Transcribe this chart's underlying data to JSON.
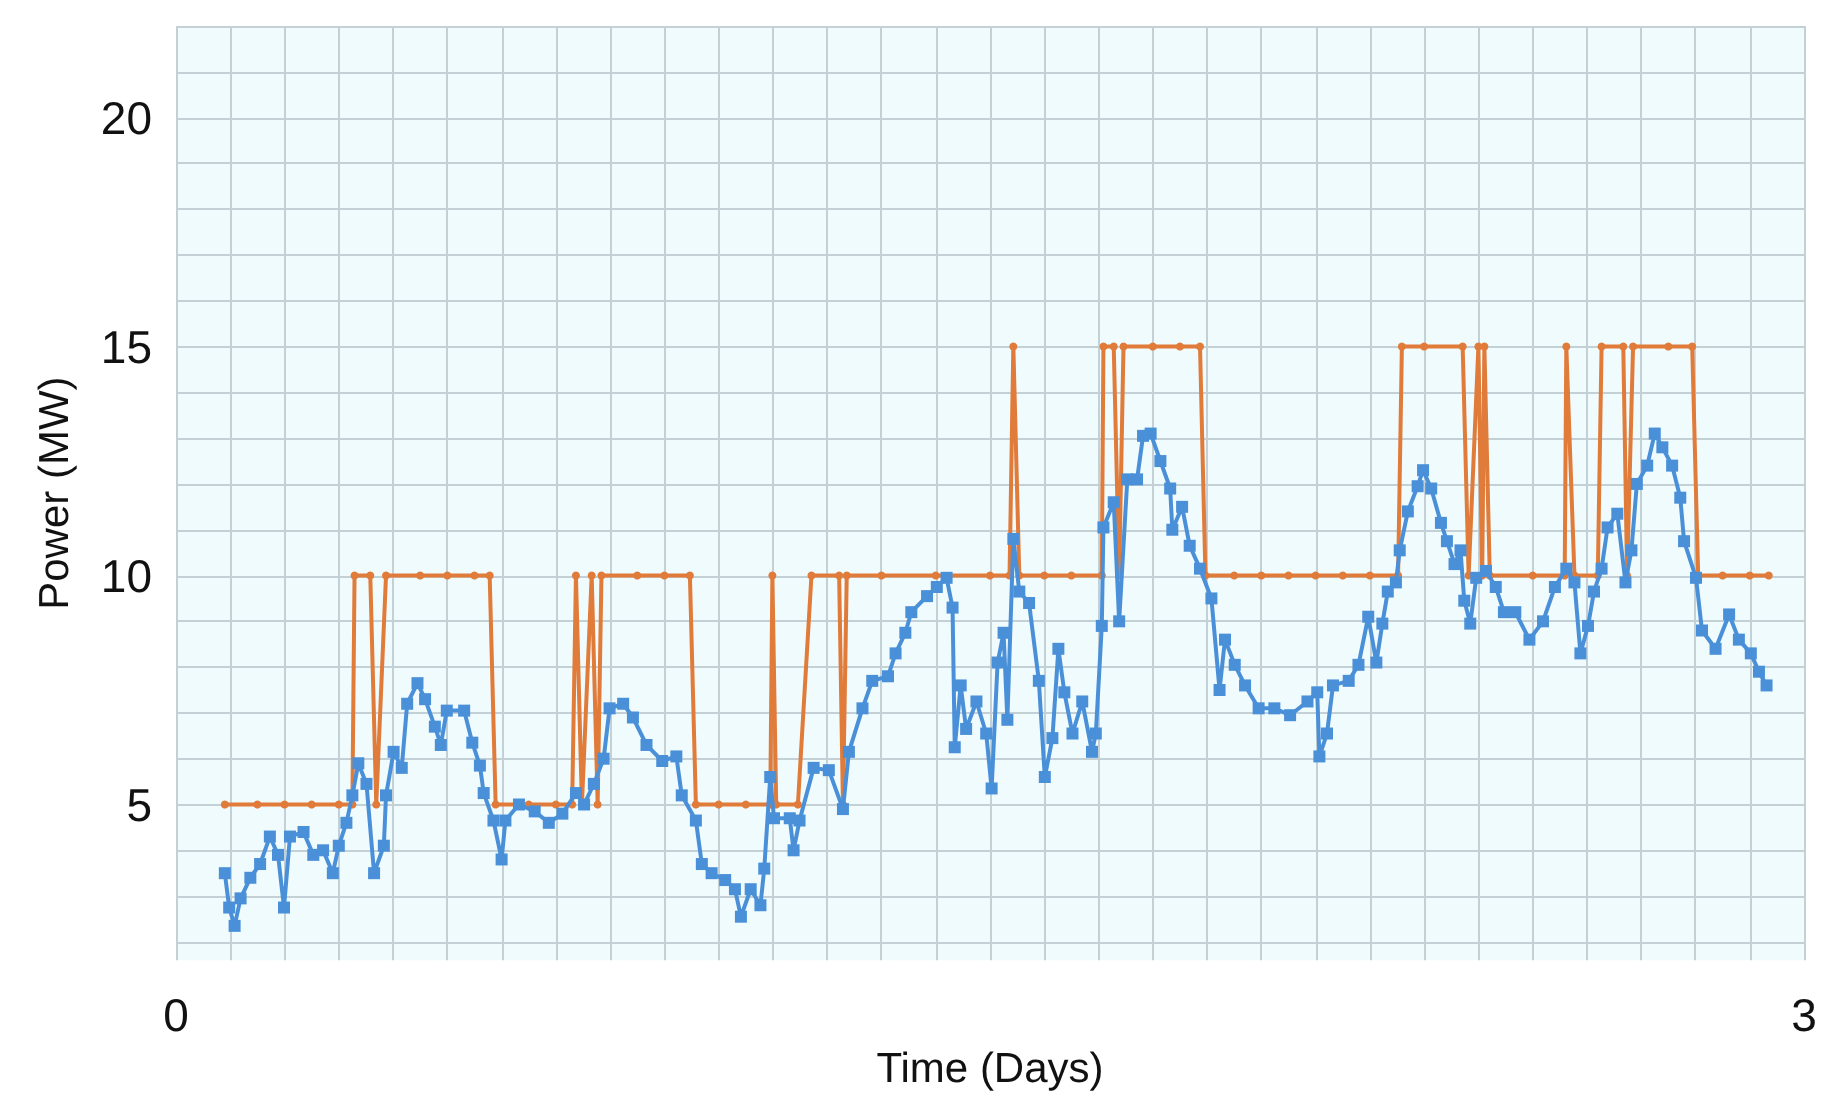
{
  "chart_data": {
    "type": "line",
    "xlabel": "Time (Days)",
    "ylabel": "Power (MW)",
    "xlim": [
      0,
      3
    ],
    "ylim": [
      1.6,
      22
    ],
    "xticks": [
      0,
      {
        "value": 0.1,
        "label": null
      },
      {
        "value": 0.2,
        "label": null
      },
      {
        "value": 0.3,
        "label": null
      },
      {
        "value": 0.4,
        "label": null
      },
      {
        "value": 0.5,
        "label": null
      },
      {
        "value": 0.6,
        "label": null
      },
      {
        "value": 0.7,
        "label": null
      },
      {
        "value": 0.8,
        "label": null
      },
      {
        "value": 0.9,
        "label": null
      },
      {
        "value": 1,
        "label": null
      },
      {
        "value": 1.1,
        "label": null
      },
      {
        "value": 1.2,
        "label": null
      },
      {
        "value": 1.3,
        "label": null
      },
      {
        "value": 1.4,
        "label": null
      },
      {
        "value": 1.5,
        "label": null
      },
      {
        "value": 1.6,
        "label": null
      },
      {
        "value": 1.7,
        "label": null
      },
      {
        "value": 1.8,
        "label": null
      },
      {
        "value": 1.9,
        "label": null
      },
      {
        "value": 2,
        "label": null
      },
      {
        "value": 2.1,
        "label": null
      },
      {
        "value": 2.2,
        "label": null
      },
      {
        "value": 2.3,
        "label": null
      },
      {
        "value": 2.4,
        "label": null
      },
      {
        "value": 2.5,
        "label": null
      },
      {
        "value": 2.6,
        "label": null
      },
      {
        "value": 2.7,
        "label": null
      },
      {
        "value": 2.8,
        "label": null
      },
      {
        "value": 2.9,
        "label": null
      },
      3
    ],
    "yticks": [
      {
        "value": 2,
        "label": null
      },
      {
        "value": 3,
        "label": null
      },
      {
        "value": 4,
        "label": null
      },
      5,
      {
        "value": 6,
        "label": null
      },
      {
        "value": 7,
        "label": null
      },
      {
        "value": 8,
        "label": null
      },
      {
        "value": 9,
        "label": null
      },
      10,
      {
        "value": 11,
        "label": null
      },
      {
        "value": 12,
        "label": null
      },
      {
        "value": 13,
        "label": null
      },
      {
        "value": 14,
        "label": null
      },
      15,
      {
        "value": 16,
        "label": null
      },
      {
        "value": 17,
        "label": null
      },
      {
        "value": 18,
        "label": null
      },
      {
        "value": 19,
        "label": null
      },
      20,
      {
        "value": 21,
        "label": null
      },
      {
        "value": 22,
        "label": null
      }
    ],
    "grid": true,
    "series": [
      {
        "color": "#e07b39",
        "marker": "circle",
        "x": [
          0.09,
          0.15,
          0.2,
          0.25,
          0.3,
          0.325,
          0.329,
          0.358,
          0.369,
          0.387,
          0.45,
          0.5,
          0.55,
          0.578,
          0.589,
          0.65,
          0.7,
          0.73,
          0.737,
          0.748,
          0.766,
          0.777,
          0.784,
          0.85,
          0.9,
          0.947,
          0.958,
          1.0,
          1.05,
          1.095,
          1.099,
          1.106,
          1.146,
          1.171,
          1.222,
          1.229,
          1.236,
          1.3,
          1.4,
          1.5,
          1.536,
          1.543,
          1.554,
          1.6,
          1.65,
          1.706,
          1.709,
          1.728,
          1.738,
          1.746,
          1.8,
          1.85,
          1.887,
          1.897,
          1.95,
          2.0,
          2.05,
          2.1,
          2.15,
          2.2,
          2.252,
          2.259,
          2.3,
          2.371,
          2.382,
          2.4,
          2.407,
          2.411,
          2.421,
          2.5,
          2.559,
          2.562,
          2.577,
          2.62,
          2.627,
          2.667,
          2.674,
          2.685,
          2.75,
          2.794,
          2.805,
          2.85,
          2.9,
          2.935
        ],
        "values": [
          5,
          5,
          5,
          5,
          5,
          5,
          10,
          10,
          5,
          10,
          10,
          10,
          10,
          10,
          5,
          5,
          5,
          5,
          10,
          5,
          10,
          5,
          10,
          10,
          10,
          10,
          5,
          5,
          5,
          5,
          10,
          5,
          5,
          10,
          10,
          5,
          10,
          10,
          10,
          10,
          10,
          15,
          10,
          10,
          10,
          10,
          15,
          15,
          10,
          15,
          15,
          15,
          15,
          10,
          10,
          10,
          10,
          10,
          10,
          10,
          10,
          15,
          15,
          15,
          10,
          15,
          10,
          15,
          10,
          10,
          10,
          15,
          10,
          10,
          15,
          15,
          10,
          15,
          15,
          15,
          10,
          10,
          10,
          10
        ]
      },
      {
        "color": "#4a90d9",
        "marker": "square",
        "x": [
          0.09,
          0.098,
          0.108,
          0.119,
          0.137,
          0.155,
          0.173,
          0.188,
          0.199,
          0.21,
          0.235,
          0.253,
          0.271,
          0.289,
          0.3,
          0.314,
          0.325,
          0.336,
          0.351,
          0.365,
          0.383,
          0.387,
          0.401,
          0.416,
          0.426,
          0.445,
          0.459,
          0.477,
          0.488,
          0.499,
          0.531,
          0.546,
          0.56,
          0.567,
          0.585,
          0.6,
          0.607,
          0.632,
          0.661,
          0.687,
          0.712,
          0.737,
          0.752,
          0.77,
          0.788,
          0.799,
          0.824,
          0.842,
          0.867,
          0.896,
          0.922,
          0.932,
          0.958,
          0.969,
          0.987,
          1.012,
          1.03,
          1.041,
          1.059,
          1.077,
          1.084,
          1.095,
          1.102,
          1.131,
          1.138,
          1.149,
          1.175,
          1.203,
          1.229,
          1.24,
          1.265,
          1.283,
          1.312,
          1.326,
          1.344,
          1.355,
          1.384,
          1.402,
          1.42,
          1.431,
          1.435,
          1.446,
          1.456,
          1.475,
          1.493,
          1.503,
          1.514,
          1.525,
          1.532,
          1.543,
          1.554,
          1.572,
          1.59,
          1.601,
          1.615,
          1.626,
          1.637,
          1.652,
          1.67,
          1.688,
          1.695,
          1.706,
          1.709,
          1.728,
          1.738,
          1.753,
          1.771,
          1.782,
          1.796,
          1.814,
          1.832,
          1.836,
          1.854,
          1.868,
          1.887,
          1.908,
          1.923,
          1.933,
          1.951,
          1.97,
          1.995,
          2.024,
          2.053,
          2.085,
          2.103,
          2.107,
          2.121,
          2.132,
          2.161,
          2.179,
          2.197,
          2.212,
          2.223,
          2.233,
          2.248,
          2.255,
          2.27,
          2.288,
          2.298,
          2.313,
          2.331,
          2.342,
          2.356,
          2.367,
          2.374,
          2.385,
          2.396,
          2.414,
          2.432,
          2.447,
          2.468,
          2.494,
          2.519,
          2.541,
          2.562,
          2.577,
          2.588,
          2.602,
          2.613,
          2.627,
          2.638,
          2.656,
          2.671,
          2.682,
          2.692,
          2.711,
          2.725,
          2.739,
          2.757,
          2.772,
          2.779,
          2.801,
          2.812,
          2.837,
          2.862,
          2.88,
          2.902,
          2.917,
          2.931
        ],
        "values": [
          3.5,
          2.75,
          2.35,
          2.95,
          3.4,
          3.7,
          4.3,
          3.9,
          2.75,
          4.3,
          4.4,
          3.9,
          4.0,
          3.5,
          4.1,
          4.6,
          5.2,
          5.9,
          5.45,
          3.5,
          4.1,
          5.2,
          6.15,
          5.8,
          7.2,
          7.65,
          7.3,
          6.7,
          6.3,
          7.05,
          7.05,
          6.35,
          5.85,
          5.25,
          4.65,
          3.8,
          4.65,
          5.0,
          4.85,
          4.6,
          4.8,
          5.25,
          5.0,
          5.45,
          6.0,
          7.1,
          7.2,
          6.9,
          6.3,
          5.95,
          6.05,
          5.2,
          4.65,
          3.7,
          3.5,
          3.35,
          3.15,
          2.55,
          3.15,
          2.8,
          3.6,
          5.6,
          4.7,
          4.7,
          4.0,
          4.65,
          5.8,
          5.75,
          4.9,
          6.15,
          7.1,
          7.7,
          7.8,
          8.3,
          8.75,
          9.2,
          9.55,
          9.75,
          9.95,
          9.3,
          6.25,
          7.6,
          6.65,
          7.25,
          6.55,
          5.35,
          8.1,
          8.75,
          6.85,
          10.8,
          9.65,
          9.4,
          7.7,
          5.6,
          6.45,
          8.4,
          7.45,
          6.55,
          7.25,
          6.15,
          6.55,
          8.9,
          11.05,
          11.6,
          9.0,
          12.1,
          12.1,
          13.05,
          13.1,
          12.5,
          11.9,
          11.0,
          11.5,
          10.65,
          10.15,
          9.5,
          7.5,
          8.6,
          8.05,
          7.6,
          7.1,
          7.1,
          6.95,
          7.25,
          7.45,
          6.05,
          6.55,
          7.6,
          7.7,
          8.05,
          9.1,
          8.1,
          8.95,
          9.65,
          9.85,
          10.55,
          11.4,
          11.95,
          12.3,
          11.9,
          11.15,
          10.75,
          10.25,
          10.55,
          9.45,
          8.95,
          9.95,
          10.1,
          9.75,
          9.2,
          9.2,
          8.6,
          9.0,
          9.75,
          10.15,
          9.85,
          8.3,
          8.9,
          9.65,
          10.15,
          11.05,
          11.35,
          9.85,
          10.55,
          12.0,
          12.4,
          13.1,
          12.8,
          12.4,
          11.7,
          10.75,
          9.95,
          8.8,
          8.4,
          9.15,
          8.6,
          8.3,
          7.9,
          7.6
        ]
      }
    ]
  }
}
